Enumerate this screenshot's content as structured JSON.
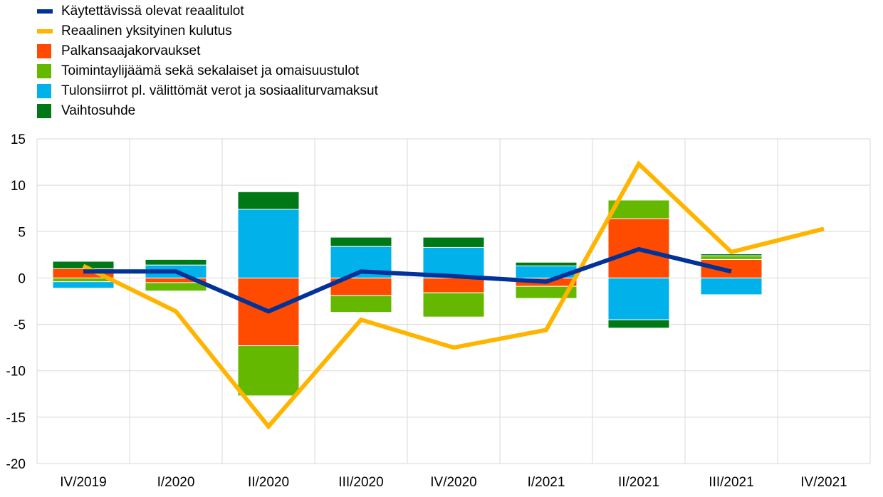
{
  "chart_data": {
    "type": "bar",
    "categories": [
      "IV/2019",
      "I/2020",
      "II/2020",
      "III/2020",
      "IV/2020",
      "I/2021",
      "II/2021",
      "III/2021",
      "IV/2021"
    ],
    "ylim": [
      -20,
      15
    ],
    "yticks": [
      "15",
      "10",
      "5",
      "0",
      "-5",
      "-10",
      "-15",
      "-20"
    ],
    "grid": true,
    "legend_position": "top-left",
    "bar_series": [
      {
        "name": "Palkansaajakorvaukset",
        "color": "#ff4b00",
        "values": [
          1.0,
          -0.5,
          -7.3,
          -1.9,
          -1.6,
          -0.9,
          6.4,
          2.0,
          null
        ]
      },
      {
        "name": "Toimintaylijäämä sekä sekalaiset ja omaisuustulot",
        "color": "#65b800",
        "values": [
          -0.4,
          -0.9,
          -5.4,
          -1.8,
          -2.6,
          -1.3,
          2.0,
          0.4,
          null
        ]
      },
      {
        "name": "Tulonsiirrot pl. välittömät verot ja sosiaaliturvamaksut",
        "color": "#00b1ea",
        "values": [
          -0.7,
          1.4,
          7.4,
          3.4,
          3.3,
          1.3,
          -4.5,
          -1.8,
          null
        ]
      },
      {
        "name": "Vaihtosuhde",
        "color": "#007816",
        "values": [
          0.8,
          0.6,
          1.9,
          1.0,
          1.1,
          0.4,
          -0.9,
          0.2,
          null
        ]
      }
    ],
    "line_series": [
      {
        "name": "Käytettävissä olevat reaalitulot",
        "color": "#003299",
        "values": [
          0.7,
          0.7,
          -3.6,
          0.7,
          0.2,
          -0.4,
          3.1,
          0.7,
          null
        ]
      },
      {
        "name": "Reaalinen yksityinen kulutus",
        "color": "#ffb400",
        "values": [
          1.3,
          -3.6,
          -16.0,
          -4.5,
          -7.5,
          -5.6,
          12.3,
          2.8,
          5.3
        ]
      }
    ]
  }
}
